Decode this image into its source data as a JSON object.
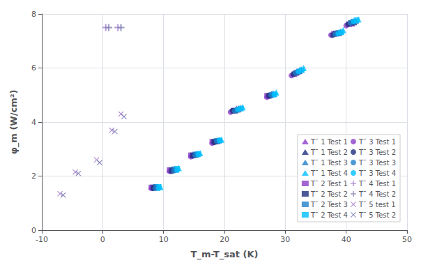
{
  "chart_data": {
    "type": "scatter",
    "xlabel": "T_m-T_sat (K)",
    "ylabel": "φ_m (W/cm²)",
    "xlim": [
      -10,
      50
    ],
    "ylim": [
      0,
      8
    ],
    "xticks": [
      -10,
      0,
      10,
      20,
      30,
      40,
      50
    ],
    "yticks": [
      0,
      2,
      4,
      6,
      8
    ],
    "grid": true,
    "legend": "lower right",
    "series": [
      {
        "name": "T¯ 1 Test 1",
        "marker": "triangle",
        "color": "#8B3FC8",
        "x": [
          8.5,
          11.5,
          15.0,
          18.5,
          22.0,
          27.5,
          32.0,
          38.5,
          41.0
        ],
        "y": [
          1.6,
          2.25,
          2.8,
          3.3,
          4.5,
          5.0,
          5.85,
          7.3,
          7.65
        ]
      },
      {
        "name": "T¯ 1 Test 2",
        "marker": "triangle",
        "color": "#1F3080",
        "x": [
          8.8,
          11.8,
          15.3,
          18.8,
          22.3,
          27.8,
          32.3,
          38.8,
          41.3
        ],
        "y": [
          1.6,
          2.25,
          2.8,
          3.3,
          4.5,
          5.05,
          5.9,
          7.3,
          7.7
        ]
      },
      {
        "name": "T¯ 1 Test 3",
        "marker": "triangle",
        "color": "#2080C8",
        "x": [
          9.1,
          12.1,
          15.6,
          19.1,
          22.6,
          28.1,
          32.6,
          39.1,
          41.6
        ],
        "y": [
          1.6,
          2.25,
          2.82,
          3.32,
          4.52,
          5.05,
          5.95,
          7.35,
          7.75
        ]
      },
      {
        "name": "T¯ 1 Test 4",
        "marker": "triangle",
        "color": "#00BFFF",
        "x": [
          9.5,
          12.5,
          16.0,
          19.5,
          23.0,
          28.5,
          33.0,
          39.5,
          42.0
        ],
        "y": [
          1.6,
          2.3,
          2.85,
          3.35,
          4.55,
          5.1,
          6.0,
          7.4,
          7.8
        ]
      },
      {
        "name": "T¯ 2 Test 1",
        "marker": "square",
        "color": "#8B3FC8",
        "x": [
          8.0,
          11.0,
          14.5,
          18.0,
          21.5,
          27.0,
          31.5,
          38.0,
          40.5
        ],
        "y": [
          1.58,
          2.22,
          2.77,
          3.27,
          4.42,
          4.97,
          5.77,
          7.27,
          7.62
        ]
      },
      {
        "name": "T¯ 2 Test 2",
        "marker": "square",
        "color": "#1F3080",
        "x": [
          8.3,
          11.3,
          14.8,
          18.3,
          21.8,
          27.3,
          31.8,
          38.3,
          40.8
        ],
        "y": [
          1.58,
          2.22,
          2.77,
          3.27,
          4.42,
          4.97,
          5.82,
          7.27,
          7.67
        ]
      },
      {
        "name": "T¯ 2 Test 3",
        "marker": "square",
        "color": "#2080C8",
        "x": [
          8.7,
          11.7,
          15.2,
          18.7,
          22.2,
          27.7,
          32.2,
          38.7,
          41.2
        ],
        "y": [
          1.6,
          2.25,
          2.8,
          3.3,
          4.45,
          5.0,
          5.87,
          7.3,
          7.72
        ]
      },
      {
        "name": "T¯ 2 Test 4",
        "marker": "square",
        "color": "#00BFFF",
        "x": [
          9.2,
          12.2,
          15.7,
          19.2,
          22.7,
          28.2,
          32.7,
          39.2,
          41.7
        ],
        "y": [
          1.6,
          2.27,
          2.82,
          3.32,
          4.5,
          5.02,
          5.92,
          7.32,
          7.77
        ]
      },
      {
        "name": "T¯ 3 Test 1",
        "marker": "circle",
        "color": "#8B3FC8",
        "x": [
          8.0,
          11.0,
          14.5,
          18.0,
          21.0,
          27.0,
          31.0,
          37.5,
          40.0
        ],
        "y": [
          1.55,
          2.18,
          2.72,
          3.22,
          4.37,
          4.92,
          5.72,
          7.22,
          7.57
        ]
      },
      {
        "name": "T¯ 3 Test 2",
        "marker": "circle",
        "color": "#1F3080",
        "x": [
          8.3,
          11.3,
          14.8,
          18.3,
          21.3,
          27.3,
          31.3,
          37.8,
          40.3
        ],
        "y": [
          1.55,
          2.18,
          2.75,
          3.25,
          4.42,
          4.97,
          5.77,
          7.22,
          7.62
        ]
      },
      {
        "name": "T¯ 3 Test 3",
        "marker": "circle",
        "color": "#2080C8",
        "x": [
          8.7,
          11.7,
          15.2,
          18.7,
          21.7,
          27.7,
          31.7,
          38.2,
          40.7
        ],
        "y": [
          1.55,
          2.2,
          2.77,
          3.3,
          4.42,
          5.0,
          5.82,
          7.25,
          7.67
        ]
      },
      {
        "name": "T¯ 3 Test 4",
        "marker": "circle",
        "color": "#00BFFF",
        "x": [
          9.2,
          12.2,
          15.7,
          19.2,
          22.2,
          28.2,
          32.2,
          38.7,
          41.2
        ],
        "y": [
          1.55,
          2.22,
          2.8,
          3.32,
          4.47,
          5.02,
          5.87,
          7.27,
          7.72
        ]
      },
      {
        "name": "T¯ 4 Test 1",
        "marker": "plus",
        "color": "#A080D0",
        "x": [
          0.5,
          2.5
        ],
        "y": [
          7.5,
          7.5
        ]
      },
      {
        "name": "T¯ 4 Test 2",
        "marker": "plus",
        "color": "#8080B0",
        "x": [
          1.0,
          3.0
        ],
        "y": [
          7.5,
          7.5
        ]
      },
      {
        "name": "T¯ 5 test 1",
        "marker": "x",
        "color": "#9B70C8",
        "x": [
          -7.0,
          -4.5,
          -1.0,
          1.5,
          3.0
        ],
        "y": [
          1.35,
          2.15,
          2.6,
          3.7,
          4.3
        ]
      },
      {
        "name": "T¯ 5 Test 2",
        "marker": "x",
        "color": "#7070B0",
        "x": [
          -6.5,
          -4.0,
          -0.5,
          2.0,
          3.5
        ],
        "y": [
          1.3,
          2.1,
          2.5,
          3.65,
          4.2
        ]
      }
    ]
  }
}
